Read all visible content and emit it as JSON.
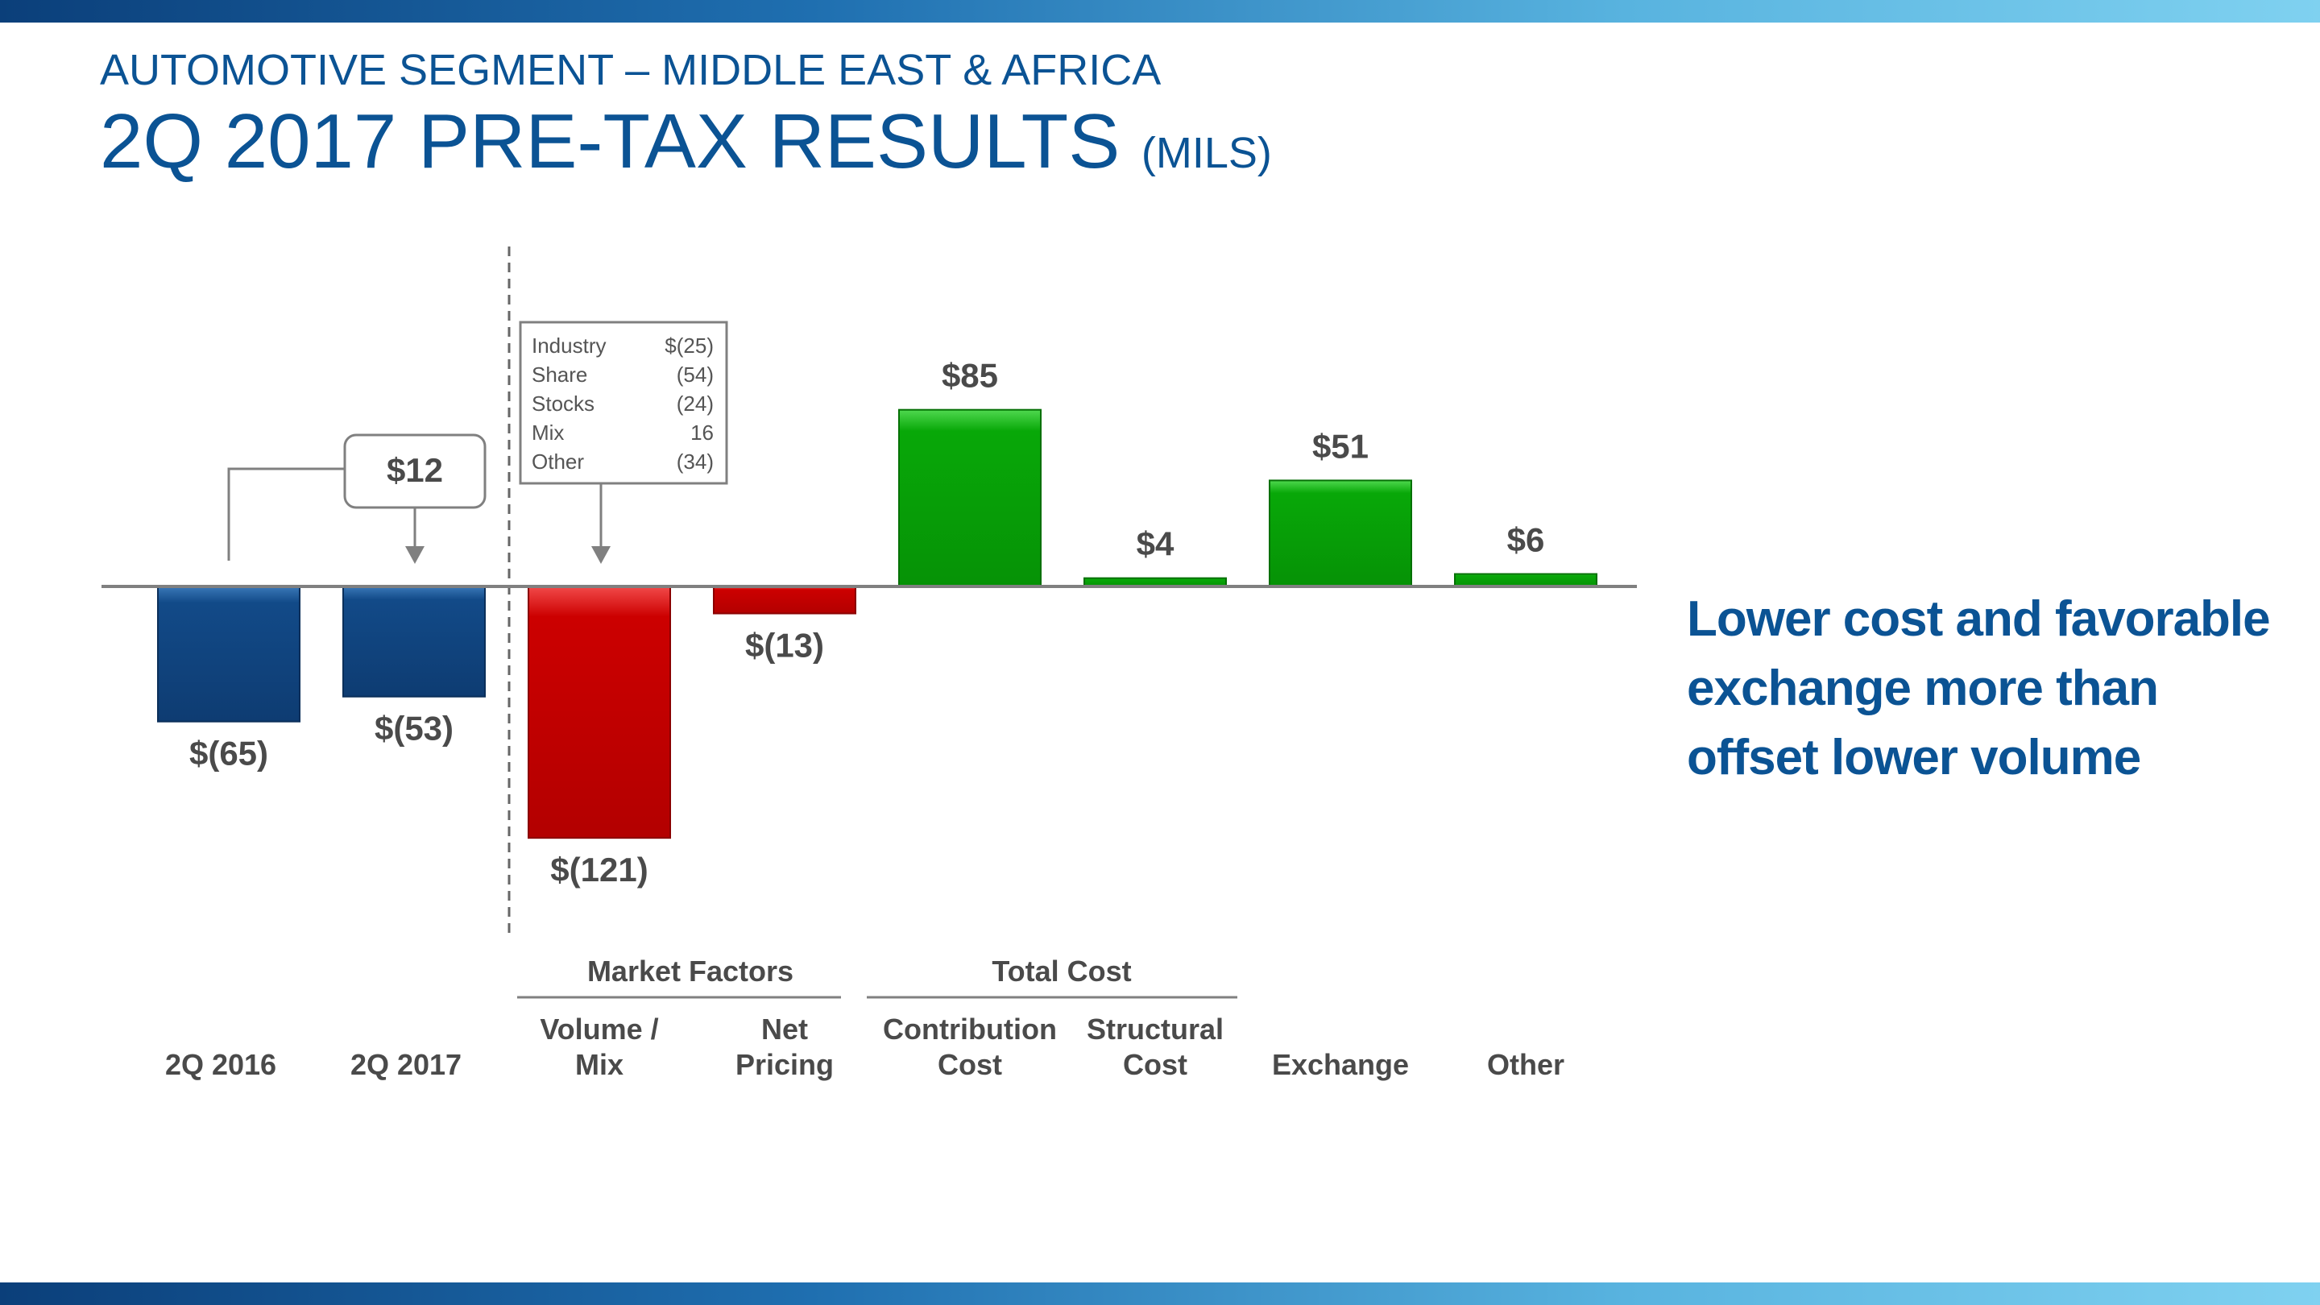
{
  "header": {
    "subtitle": "AUTOMOTIVE SEGMENT – MIDDLE EAST & AFRICA",
    "title": "2Q 2017 PRE-TAX RESULTS",
    "title_unit": "(MILS)"
  },
  "takeaway": "Lower cost and favorable exchange more than offset lower volume",
  "change_callout": "$12",
  "breakdown_box": {
    "rows": [
      {
        "label": "Industry",
        "value": "$(25)"
      },
      {
        "label": "Share",
        "value": "(54)"
      },
      {
        "label": "Stocks",
        "value": "(24)"
      },
      {
        "label": "Mix",
        "value": "16"
      },
      {
        "label": "Other",
        "value": "(34)"
      }
    ]
  },
  "groups": [
    {
      "label": "Market Factors"
    },
    {
      "label": "Total Cost"
    }
  ],
  "colors": {
    "brand": "#0b5394",
    "blue_bar": "#134a86",
    "red_bar": "#cc0000",
    "green_bar": "#0aa60a",
    "text_gray": "#4a4a4a"
  },
  "chart_data": {
    "type": "bar",
    "title": "2Q 2017 PRE-TAX RESULTS (MILS)",
    "categories": [
      [
        "2Q 2016"
      ],
      [
        "2Q 2017"
      ],
      [
        "Volume /",
        "Mix"
      ],
      [
        "Net",
        "Pricing"
      ],
      [
        "Contribution",
        "Cost"
      ],
      [
        "Structural",
        "Cost"
      ],
      [
        "Exchange"
      ],
      [
        "Other"
      ]
    ],
    "values": [
      -65,
      -53,
      -121,
      -13,
      85,
      4,
      51,
      6
    ],
    "value_labels": [
      "$(65)",
      "$(53)",
      "$(121)",
      "$(13)",
      "$85",
      "$4",
      "$51",
      "$6"
    ],
    "bar_kinds": [
      "blue",
      "blue",
      "red",
      "red",
      "green",
      "green",
      "green",
      "green"
    ],
    "ylim": [
      -170,
      170
    ],
    "xlabel": "",
    "ylabel": ""
  }
}
